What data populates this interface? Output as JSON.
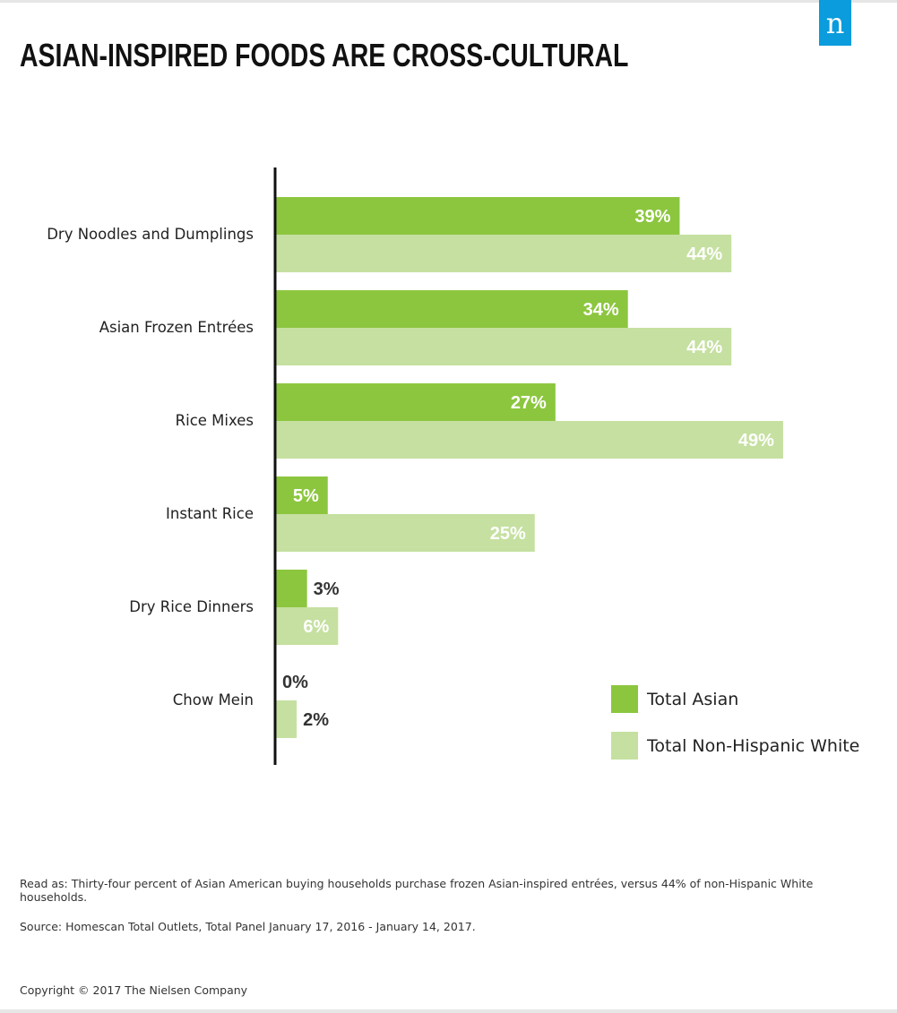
{
  "header": {
    "title": "ASIAN-INSPIRED FOODS ARE CROSS-CULTURAL",
    "logo_letter": "n"
  },
  "colors": {
    "asian": "#8cc63f",
    "white": "#c5e0a0",
    "logo": "#0a9cdc"
  },
  "chart_data": {
    "type": "bar",
    "orientation": "horizontal",
    "title": "ASIAN-INSPIRED FOODS ARE CROSS-CULTURAL",
    "categories": [
      "Dry Noodles and Dumplings",
      "Asian Frozen Entrées",
      "Rice Mixes",
      "Instant Rice",
      "Dry Rice Dinners",
      "Chow Mein"
    ],
    "series": [
      {
        "name": "Total Asian",
        "values": [
          39,
          34,
          27,
          5,
          3,
          0
        ],
        "labels": [
          "39%",
          "34%",
          "27%",
          "5%",
          "3%",
          "0%"
        ]
      },
      {
        "name": "Total Non-Hispanic White",
        "values": [
          44,
          44,
          49,
          25,
          6,
          2
        ],
        "labels": [
          "44%",
          "44%",
          "49%",
          "25%",
          "6%",
          "2%"
        ]
      }
    ],
    "unit": "%",
    "xlim": [
      0,
      60
    ],
    "legend_position": "bottom-right",
    "grid": false
  },
  "legend": {
    "items": [
      {
        "label": "Total Asian"
      },
      {
        "label": "Total Non-Hispanic White"
      }
    ]
  },
  "footer": {
    "read_as": "Read as: Thirty-four percent of Asian American buying households purchase frozen Asian-inspired entrées, versus 44% of non-Hispanic White households.",
    "source": "Source: Homescan Total Outlets, Total Panel January 17, 2016 - January 14, 2017.",
    "copyright": "Copyright © 2017 The Nielsen Company"
  }
}
